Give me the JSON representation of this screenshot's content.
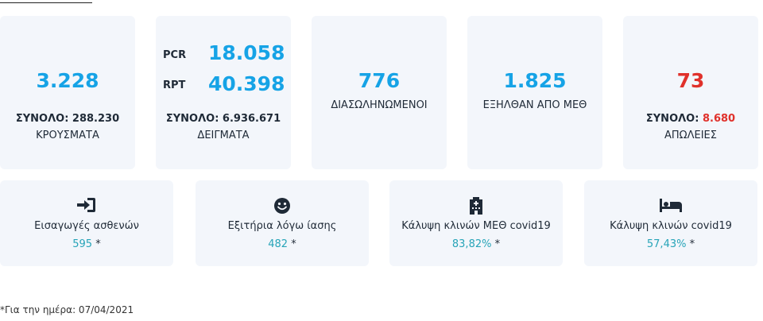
{
  "top_cards": {
    "cases": {
      "value": "3.228",
      "total": "ΣΥΝΟΛΟ: 288.230",
      "label": "ΚΡΟΥΣΜΑΤΑ"
    },
    "tests": {
      "pcr_label": "PCR",
      "pcr_value": "18.058",
      "rpt_label": "RPT",
      "rpt_value": "40.398",
      "total": "ΣΥΝΟΛΟ: 6.936.671",
      "label": "ΔΕΙΓΜΑΤΑ"
    },
    "intubated": {
      "value": "776",
      "label": "ΔΙΑΣΩΛΗΝΩΜΕΝΟΙ"
    },
    "icu_discharged": {
      "value": "1.825",
      "label": "ΕΞΗΛΘΑΝ ΑΠΟ ΜΕΘ"
    },
    "deaths": {
      "value": "73",
      "total_prefix": "ΣΥΝΟΛΟ:",
      "total_value": "8.680",
      "label": "ΑΠΩΛΕΙΕΣ"
    }
  },
  "bottom_cards": {
    "admissions": {
      "icon": "sign-in-icon",
      "label": "Εισαγωγές ασθενών",
      "value": "595",
      "mark": "*"
    },
    "discharges": {
      "icon": "smile-icon",
      "label": "Εξιτήρια λόγω ίασης",
      "value": "482",
      "mark": "*"
    },
    "icu_beds": {
      "icon": "hospital-icon",
      "label": "Κάλυψη κλινών ΜΕΘ covid19",
      "value": "83,82%",
      "mark": "*"
    },
    "beds": {
      "icon": "bed-icon",
      "label": "Κάλυψη κλινών covid19",
      "value": "57,43%",
      "mark": "*"
    }
  },
  "footnote": "*Για την ημέρα: 07/04/2021",
  "colors": {
    "accent_blue": "#16a3e6",
    "accent_red": "#e0312b",
    "teal": "#27a4b8",
    "card_bg": "#f3f6fb"
  }
}
